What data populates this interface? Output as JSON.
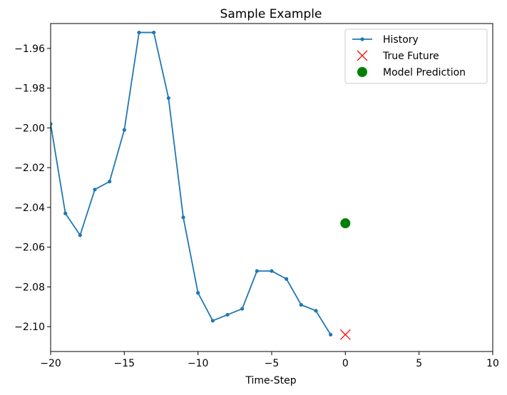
{
  "chart_data": {
    "type": "line",
    "title": "Sample Example",
    "xlabel": "Time-Step",
    "ylabel": "",
    "xlim": [
      -20,
      10
    ],
    "ylim": [
      -2.1125,
      -1.9475
    ],
    "xticks": [
      -20,
      -15,
      -10,
      -5,
      0,
      5,
      10
    ],
    "xtick_labels": [
      "−20",
      "−15",
      "−10",
      "−5",
      "0",
      "5",
      "10"
    ],
    "yticks": [
      -1.96,
      -1.98,
      -2.0,
      -2.02,
      -2.04,
      -2.06,
      -2.08,
      -2.1
    ],
    "ytick_labels": [
      "−1.96",
      "−1.98",
      "−2.00",
      "−2.02",
      "−2.04",
      "−2.06",
      "−2.08",
      "−2.10"
    ],
    "grid": false,
    "legend_position": "top-right",
    "series": [
      {
        "name": "History",
        "marker": "dot-line",
        "color": "#1f77b4",
        "x": [
          -20,
          -19,
          -18,
          -17,
          -16,
          -15,
          -14,
          -13,
          -12,
          -11,
          -10,
          -9,
          -8,
          -7,
          -6,
          -5,
          -4,
          -3,
          -2,
          -1
        ],
        "y": [
          -1.998,
          -2.043,
          -2.054,
          -2.031,
          -2.027,
          -2.001,
          -1.952,
          -1.952,
          -1.985,
          -2.045,
          -2.083,
          -2.097,
          -2.094,
          -2.091,
          -2.072,
          -2.072,
          -2.076,
          -2.089,
          -2.092,
          -2.104
        ]
      },
      {
        "name": "True Future",
        "marker": "x",
        "color": "#ff0000",
        "x": [
          0
        ],
        "y": [
          -2.104
        ]
      },
      {
        "name": "Model Prediction",
        "marker": "circle",
        "color": "#008000",
        "x": [
          0
        ],
        "y": [
          -2.048
        ]
      }
    ]
  }
}
